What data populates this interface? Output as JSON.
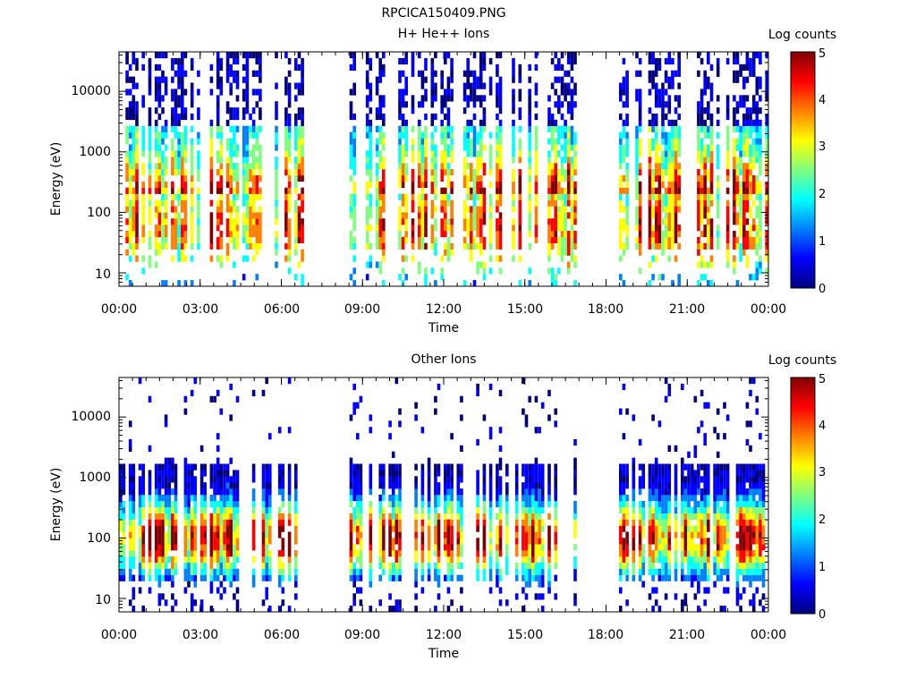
{
  "figure": {
    "title": "RPCICA150409.PNG"
  },
  "colorscale": [
    "#00007f",
    "#0000ff",
    "#007fff",
    "#00ffff",
    "#7fff7f",
    "#ffff00",
    "#ff7f00",
    "#ff0000",
    "#7f0000"
  ],
  "chart_data": [
    {
      "type": "heatmap",
      "title": "H+ He++ Ions",
      "xlabel": "Time",
      "ylabel": "Energy (eV)",
      "y_scale": "log",
      "ylim": [
        6,
        45000
      ],
      "xlim": [
        "00:00",
        "24:00"
      ],
      "x_ticks": [
        "00:00",
        "03:00",
        "06:00",
        "09:00",
        "12:00",
        "15:00",
        "18:00",
        "21:00",
        "00:00"
      ],
      "y_ticks": [
        "10",
        "100",
        "1000",
        "10000"
      ],
      "colorbar": {
        "label": "Log counts",
        "range": [
          0,
          5
        ],
        "ticks": [
          "0",
          "1",
          "2",
          "3",
          "4",
          "5"
        ]
      },
      "data_gaps_hours": [
        [
          6.9,
          8.5
        ],
        [
          17.0,
          18.5
        ]
      ],
      "peak_energy_eV": 60,
      "peak_log_counts": 4
    },
    {
      "type": "heatmap",
      "title": "Other Ions",
      "xlabel": "Time",
      "ylabel": "Energy (eV)",
      "y_scale": "log",
      "ylim": [
        6,
        45000
      ],
      "xlim": [
        "00:00",
        "24:00"
      ],
      "x_ticks": [
        "00:00",
        "03:00",
        "06:00",
        "09:00",
        "12:00",
        "15:00",
        "18:00",
        "21:00",
        "00:00"
      ],
      "y_ticks": [
        "10",
        "100",
        "1000",
        "10000"
      ],
      "colorbar": {
        "label": "Log counts",
        "range": [
          0,
          5
        ],
        "ticks": [
          "0",
          "1",
          "2",
          "3",
          "4",
          "5"
        ]
      },
      "data_gaps_hours": [
        [
          6.9,
          8.5
        ],
        [
          17.0,
          18.5
        ]
      ],
      "peak_energy_eV": 100,
      "peak_log_counts": 4.5
    }
  ]
}
